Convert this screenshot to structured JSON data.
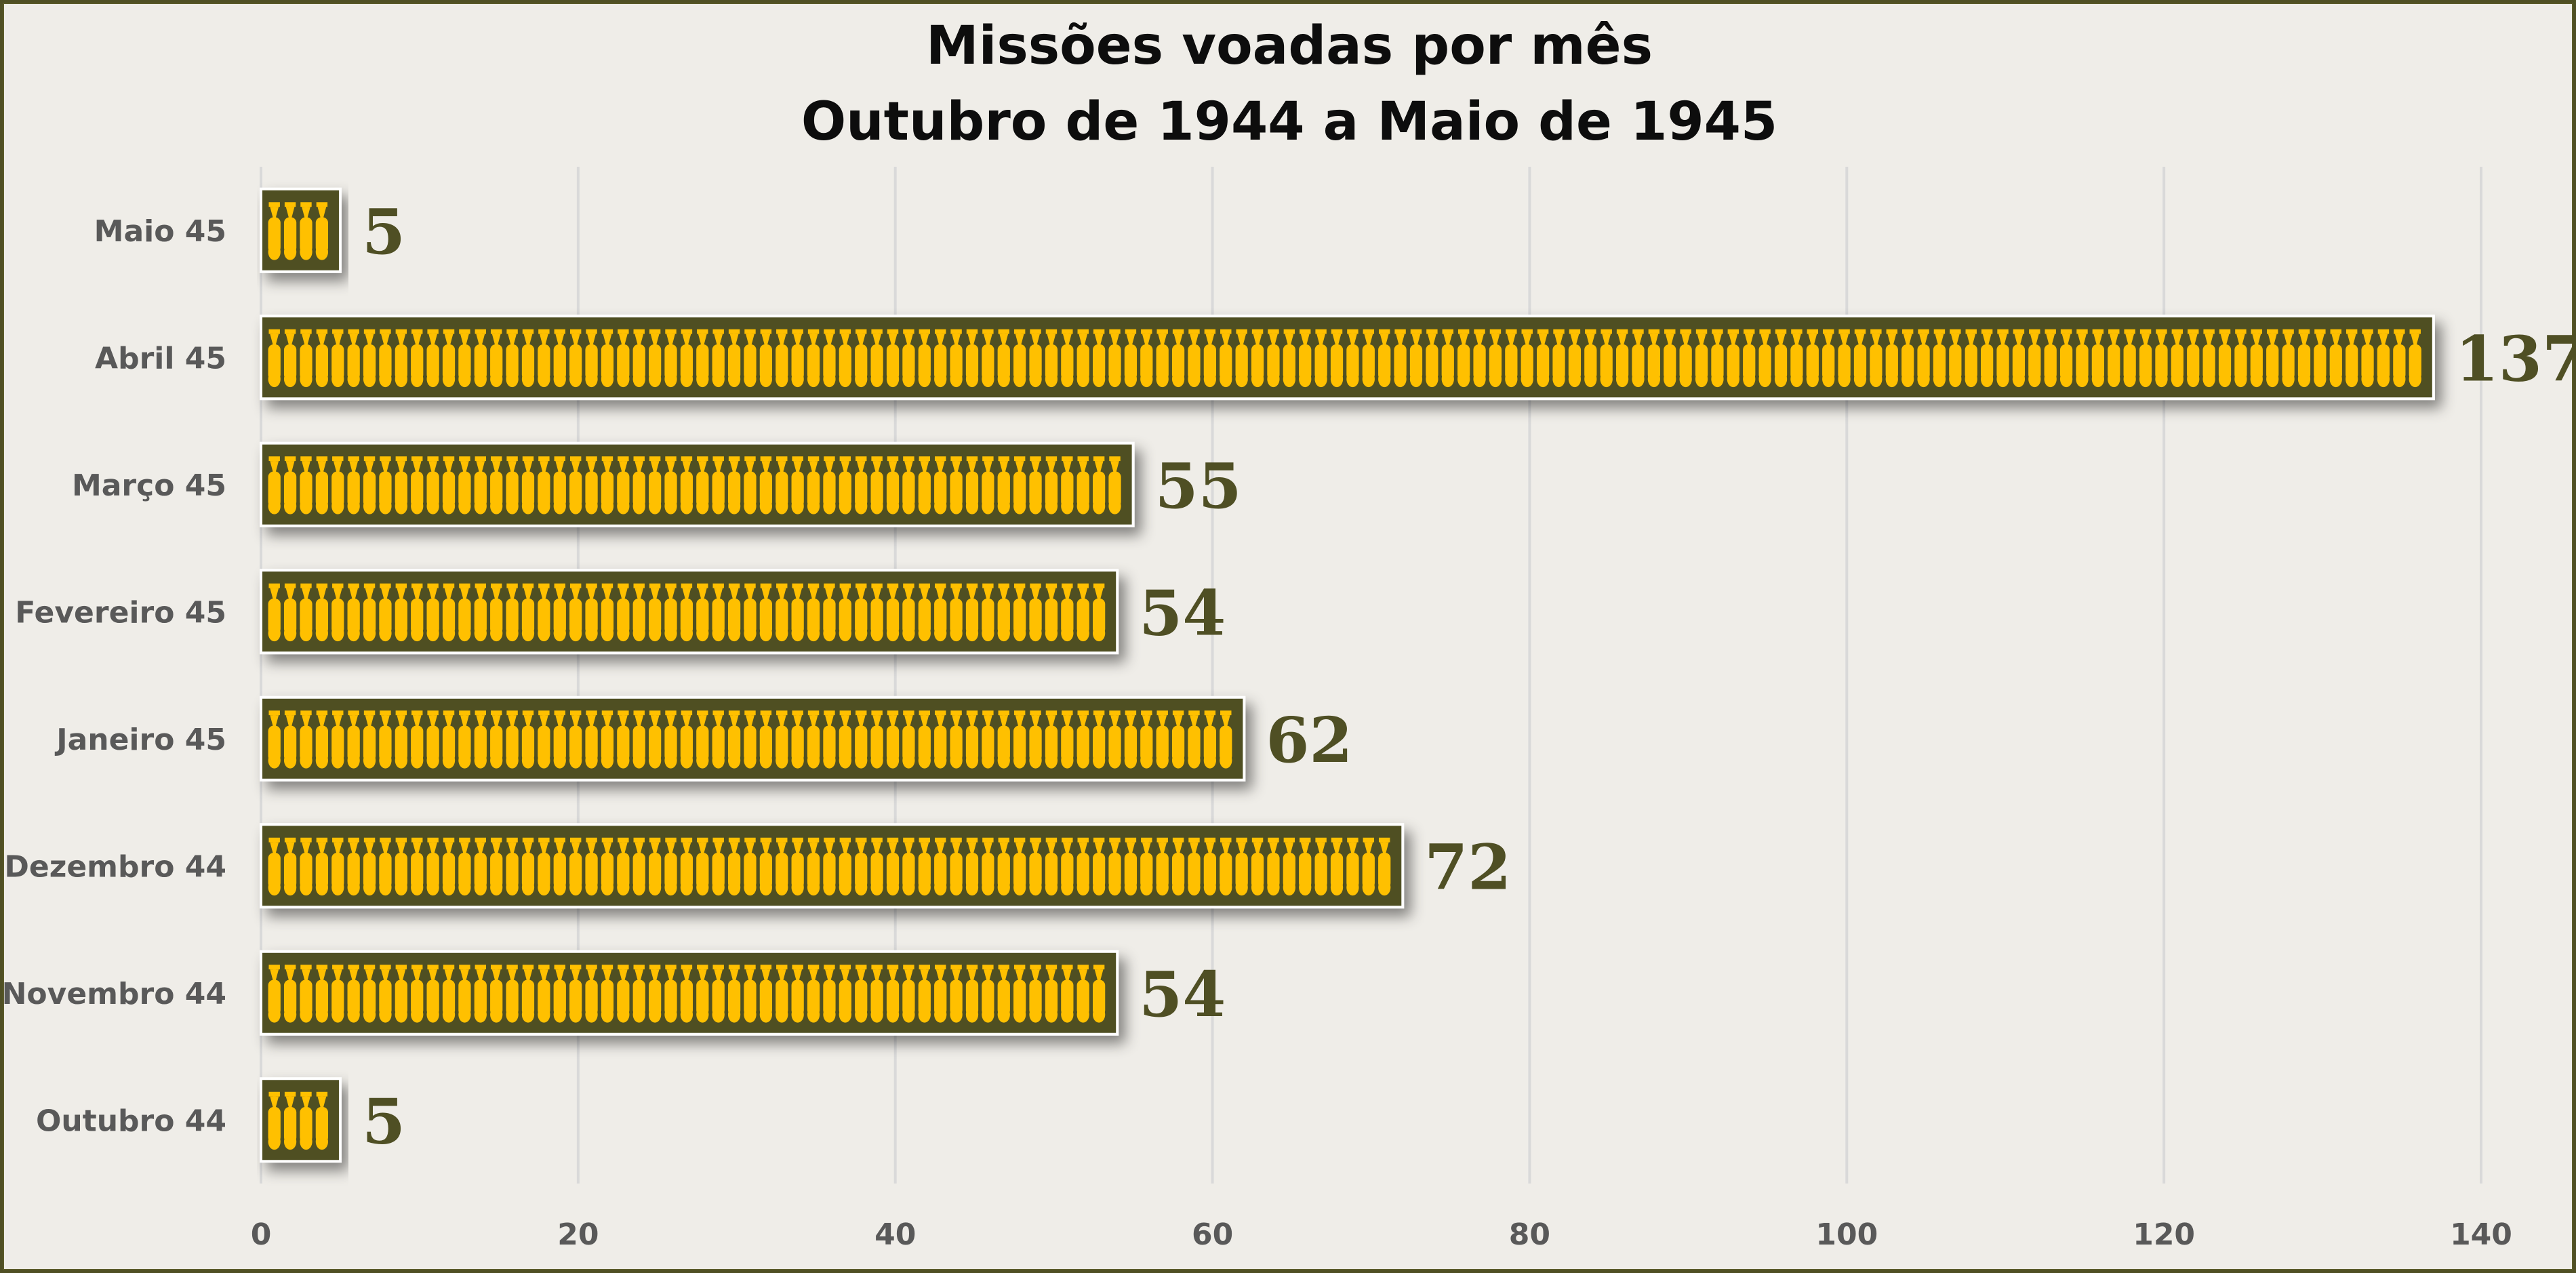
{
  "chart_data": {
    "type": "bar",
    "orientation": "horizontal",
    "title": "Missões voadas por mês",
    "subtitle": "Outubro de 1944 a Maio de 1945",
    "categories": [
      "Maio 45",
      "Abril 45",
      "Março 45",
      "Fevereiro 45",
      "Janeiro 45",
      "Dezembro 44",
      "Novembro 44",
      "Outubro 44"
    ],
    "values": [
      5,
      137,
      55,
      54,
      62,
      72,
      54,
      5
    ],
    "xlim": [
      0,
      140
    ],
    "xticks": [
      "0",
      "20",
      "40",
      "60",
      "80",
      "100",
      "120",
      "140"
    ],
    "grid": true,
    "legend": "none",
    "colors": {
      "bar": "#4f4f24",
      "bomb": "#ffc000",
      "value_label": "#4f4f24",
      "background": "#efede8",
      "gridline": "#d9d9d9"
    },
    "icon": "bomb-icon"
  }
}
